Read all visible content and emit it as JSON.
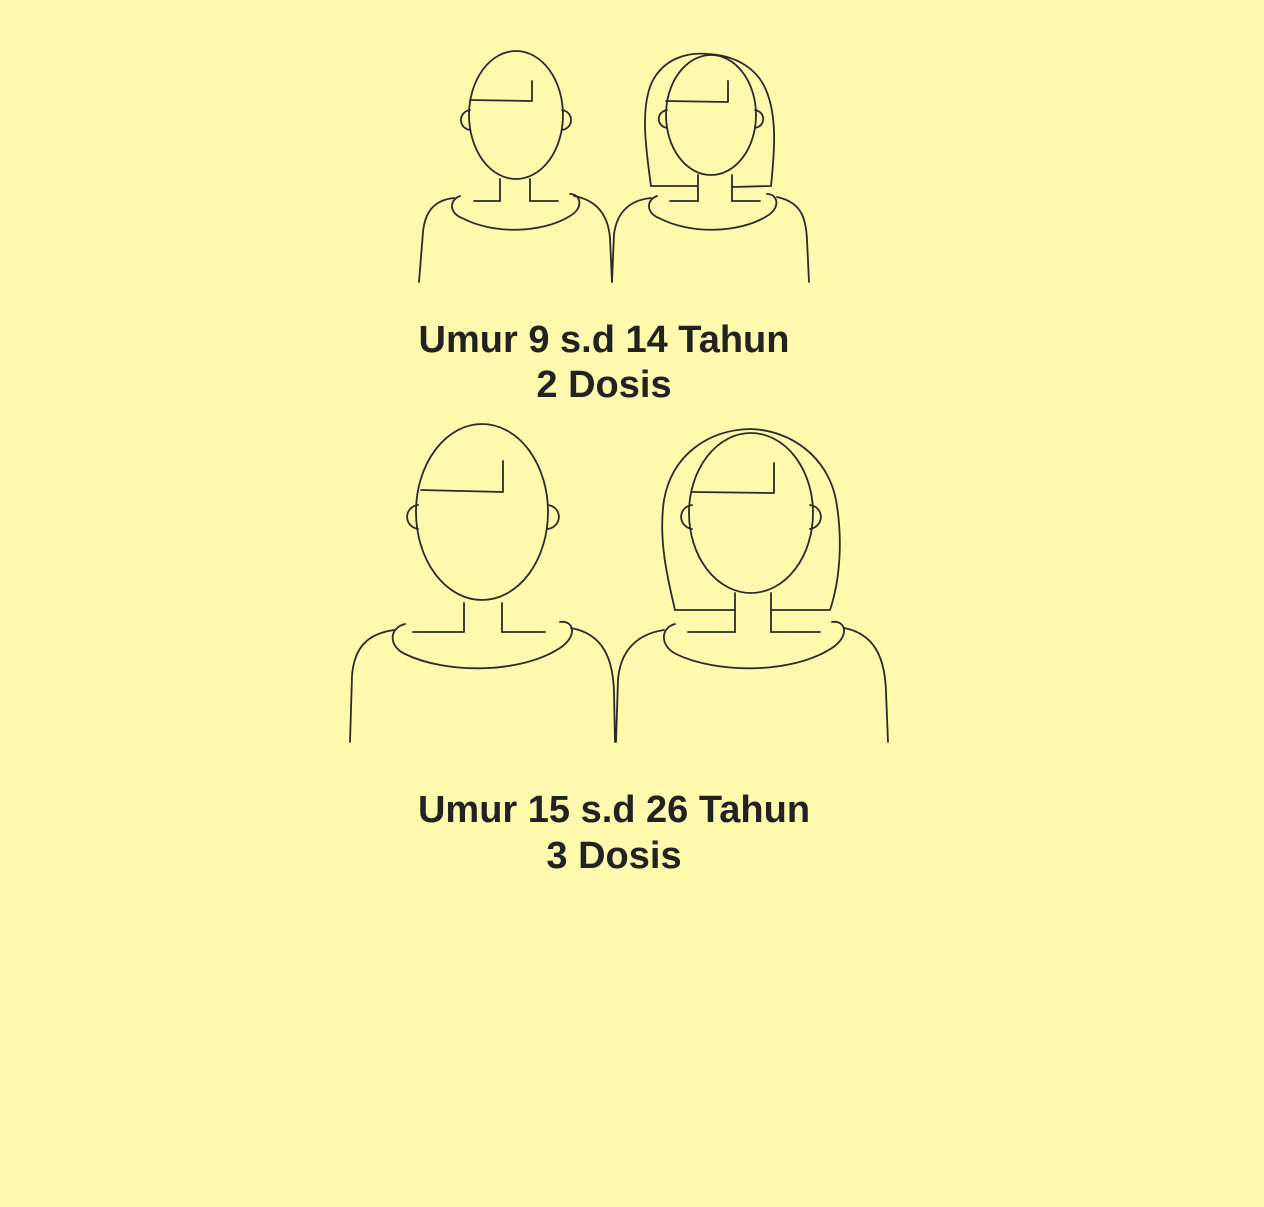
{
  "background_color": "#fff9ae",
  "line_color": "#2a2a2a",
  "groups": [
    {
      "age_label": "Umur 9 s.d 14 Tahun",
      "dose_label": "2 Dosis",
      "figures": [
        "boy-figure",
        "girl-hijab-figure"
      ]
    },
    {
      "age_label": "Umur 15 s.d 26 Tahun",
      "dose_label": "3 Dosis",
      "figures": [
        "boy-figure",
        "girl-hijab-figure"
      ]
    }
  ]
}
